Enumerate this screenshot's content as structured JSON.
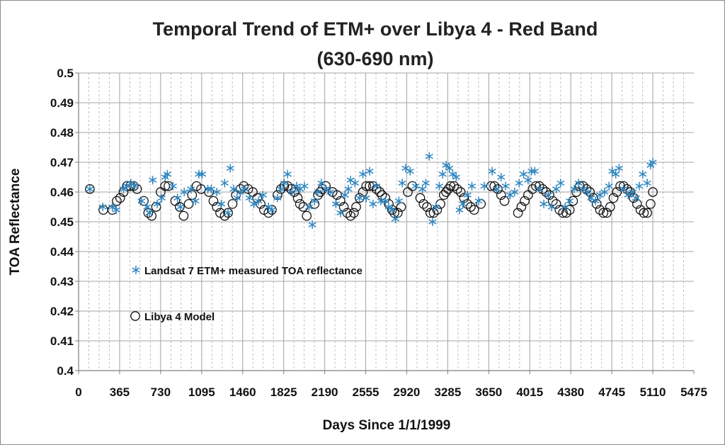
{
  "chart_data": {
    "type": "scatter",
    "title_line1": "Temporal Trend of ETM+ over Libya 4 - Red Band",
    "title_line2": "(630-690 nm)",
    "xlabel": "Days Since 1/1/1999",
    "ylabel": "TOA Reflectance",
    "xlim": [
      0,
      5475
    ],
    "ylim": [
      0.4,
      0.5
    ],
    "xticks": [
      0,
      365,
      730,
      1095,
      1460,
      1825,
      2190,
      2555,
      2920,
      3285,
      3650,
      4015,
      4380,
      4745,
      5110,
      5475
    ],
    "yticks": [
      0.4,
      0.41,
      0.42,
      0.43,
      0.44,
      0.45,
      0.46,
      0.47,
      0.48,
      0.49,
      0.5
    ],
    "ytick_labels": [
      "0.4",
      "0.41",
      "0.42",
      "0.43",
      "0.44",
      "0.45",
      "0.46",
      "0.47",
      "0.48",
      "0.49",
      "0.5"
    ],
    "grid": true,
    "legend_placement": "inside-left",
    "series": [
      {
        "name": "Landsat 7 ETM+ measured TOA reflectance",
        "marker": "asterisk",
        "color": "#2e86c1",
        "points": [
          [
            100,
            0.461
          ],
          [
            215,
            0.455
          ],
          [
            300,
            0.455
          ],
          [
            335,
            0.454
          ],
          [
            400,
            0.461
          ],
          [
            430,
            0.462
          ],
          [
            465,
            0.463
          ],
          [
            500,
            0.462
          ],
          [
            560,
            0.457
          ],
          [
            610,
            0.455
          ],
          [
            630,
            0.453
          ],
          [
            660,
            0.464
          ],
          [
            700,
            0.456
          ],
          [
            740,
            0.458
          ],
          [
            770,
            0.465
          ],
          [
            790,
            0.466
          ],
          [
            840,
            0.462
          ],
          [
            880,
            0.458
          ],
          [
            905,
            0.455
          ],
          [
            940,
            0.46
          ],
          [
            1000,
            0.461
          ],
          [
            1040,
            0.457
          ],
          [
            1070,
            0.466
          ],
          [
            1100,
            0.466
          ],
          [
            1150,
            0.461
          ],
          [
            1180,
            0.461
          ],
          [
            1230,
            0.46
          ],
          [
            1270,
            0.456
          ],
          [
            1300,
            0.463
          ],
          [
            1330,
            0.453
          ],
          [
            1350,
            0.468
          ],
          [
            1380,
            0.461
          ],
          [
            1410,
            0.458
          ],
          [
            1440,
            0.46
          ],
          [
            1480,
            0.461
          ],
          [
            1520,
            0.458
          ],
          [
            1560,
            0.456
          ],
          [
            1600,
            0.457
          ],
          [
            1640,
            0.459
          ],
          [
            1690,
            0.455
          ],
          [
            1720,
            0.454
          ],
          [
            1770,
            0.458
          ],
          [
            1800,
            0.461
          ],
          [
            1830,
            0.463
          ],
          [
            1860,
            0.466
          ],
          [
            1900,
            0.46
          ],
          [
            1940,
            0.462
          ],
          [
            1970,
            0.461
          ],
          [
            2010,
            0.462
          ],
          [
            2050,
            0.455
          ],
          [
            2080,
            0.449
          ],
          [
            2100,
            0.457
          ],
          [
            2130,
            0.46
          ],
          [
            2160,
            0.463
          ],
          [
            2200,
            0.461
          ],
          [
            2240,
            0.46
          ],
          [
            2290,
            0.456
          ],
          [
            2330,
            0.453
          ],
          [
            2370,
            0.459
          ],
          [
            2400,
            0.461
          ],
          [
            2420,
            0.464
          ],
          [
            2460,
            0.463
          ],
          [
            2500,
            0.458
          ],
          [
            2530,
            0.466
          ],
          [
            2560,
            0.458
          ],
          [
            2590,
            0.467
          ],
          [
            2620,
            0.456
          ],
          [
            2650,
            0.462
          ],
          [
            2690,
            0.457
          ],
          [
            2730,
            0.457
          ],
          [
            2760,
            0.455
          ],
          [
            2790,
            0.454
          ],
          [
            2820,
            0.451
          ],
          [
            2850,
            0.457
          ],
          [
            2880,
            0.463
          ],
          [
            2910,
            0.468
          ],
          [
            2950,
            0.467
          ],
          [
            3000,
            0.462
          ],
          [
            3060,
            0.461
          ],
          [
            3090,
            0.463
          ],
          [
            3120,
            0.472
          ],
          [
            3150,
            0.45
          ],
          [
            3180,
            0.455
          ],
          [
            3210,
            0.462
          ],
          [
            3240,
            0.466
          ],
          [
            3270,
            0.469
          ],
          [
            3300,
            0.468
          ],
          [
            3330,
            0.466
          ],
          [
            3360,
            0.465
          ],
          [
            3390,
            0.454
          ],
          [
            3420,
            0.456
          ],
          [
            3460,
            0.459
          ],
          [
            3500,
            0.462
          ],
          [
            3560,
            0.457
          ],
          [
            3610,
            0.462
          ],
          [
            3680,
            0.467
          ],
          [
            3720,
            0.461
          ],
          [
            3760,
            0.465
          ],
          [
            3800,
            0.462
          ],
          [
            3840,
            0.459
          ],
          [
            3880,
            0.46
          ],
          [
            3920,
            0.463
          ],
          [
            3960,
            0.466
          ],
          [
            4000,
            0.464
          ],
          [
            4030,
            0.467
          ],
          [
            4060,
            0.467
          ],
          [
            4100,
            0.461
          ],
          [
            4140,
            0.456
          ],
          [
            4180,
            0.459
          ],
          [
            4210,
            0.455
          ],
          [
            4250,
            0.461
          ],
          [
            4290,
            0.463
          ],
          [
            4330,
            0.455
          ],
          [
            4370,
            0.457
          ],
          [
            4410,
            0.461
          ],
          [
            4450,
            0.463
          ],
          [
            4490,
            0.461
          ],
          [
            4530,
            0.46
          ],
          [
            4560,
            0.458
          ],
          [
            4600,
            0.457
          ],
          [
            4640,
            0.459
          ],
          [
            4680,
            0.46
          ],
          [
            4720,
            0.462
          ],
          [
            4750,
            0.467
          ],
          [
            4780,
            0.466
          ],
          [
            4810,
            0.468
          ],
          [
            4850,
            0.461
          ],
          [
            4890,
            0.459
          ],
          [
            4930,
            0.46
          ],
          [
            4960,
            0.458
          ],
          [
            4990,
            0.462
          ],
          [
            5020,
            0.466
          ],
          [
            5060,
            0.463
          ],
          [
            5090,
            0.469
          ],
          [
            5110,
            0.47
          ]
        ]
      },
      {
        "name": "Libya 4 Model",
        "marker": "open-circle",
        "color": "#111111",
        "points": [
          [
            100,
            0.461
          ],
          [
            220,
            0.454
          ],
          [
            300,
            0.454
          ],
          [
            340,
            0.457
          ],
          [
            370,
            0.458
          ],
          [
            400,
            0.46
          ],
          [
            430,
            0.462
          ],
          [
            460,
            0.462
          ],
          [
            490,
            0.462
          ],
          [
            520,
            0.461
          ],
          [
            580,
            0.457
          ],
          [
            620,
            0.453
          ],
          [
            650,
            0.452
          ],
          [
            690,
            0.455
          ],
          [
            730,
            0.46
          ],
          [
            770,
            0.462
          ],
          [
            800,
            0.462
          ],
          [
            860,
            0.457
          ],
          [
            900,
            0.455
          ],
          [
            935,
            0.452
          ],
          [
            980,
            0.456
          ],
          [
            1010,
            0.459
          ],
          [
            1050,
            0.462
          ],
          [
            1090,
            0.461
          ],
          [
            1160,
            0.46
          ],
          [
            1200,
            0.457
          ],
          [
            1230,
            0.455
          ],
          [
            1260,
            0.453
          ],
          [
            1300,
            0.452
          ],
          [
            1330,
            0.453
          ],
          [
            1370,
            0.456
          ],
          [
            1400,
            0.459
          ],
          [
            1440,
            0.461
          ],
          [
            1470,
            0.462
          ],
          [
            1510,
            0.461
          ],
          [
            1550,
            0.46
          ],
          [
            1590,
            0.458
          ],
          [
            1620,
            0.456
          ],
          [
            1650,
            0.454
          ],
          [
            1690,
            0.453
          ],
          [
            1720,
            0.454
          ],
          [
            1770,
            0.459
          ],
          [
            1800,
            0.461
          ],
          [
            1830,
            0.462
          ],
          [
            1860,
            0.462
          ],
          [
            1890,
            0.461
          ],
          [
            1920,
            0.46
          ],
          [
            1950,
            0.458
          ],
          [
            1970,
            0.456
          ],
          [
            2000,
            0.455
          ],
          [
            2030,
            0.452
          ],
          [
            2100,
            0.456
          ],
          [
            2130,
            0.459
          ],
          [
            2150,
            0.46
          ],
          [
            2170,
            0.461
          ],
          [
            2200,
            0.462
          ],
          [
            2260,
            0.46
          ],
          [
            2300,
            0.459
          ],
          [
            2330,
            0.457
          ],
          [
            2360,
            0.455
          ],
          [
            2390,
            0.453
          ],
          [
            2420,
            0.452
          ],
          [
            2450,
            0.453
          ],
          [
            2470,
            0.455
          ],
          [
            2500,
            0.458
          ],
          [
            2530,
            0.46
          ],
          [
            2560,
            0.462
          ],
          [
            2590,
            0.462
          ],
          [
            2620,
            0.462
          ],
          [
            2650,
            0.461
          ],
          [
            2680,
            0.46
          ],
          [
            2700,
            0.459
          ],
          [
            2730,
            0.458
          ],
          [
            2760,
            0.456
          ],
          [
            2790,
            0.454
          ],
          [
            2810,
            0.453
          ],
          [
            2840,
            0.453
          ],
          [
            2870,
            0.455
          ],
          [
            2930,
            0.46
          ],
          [
            2970,
            0.462
          ],
          [
            3040,
            0.458
          ],
          [
            3070,
            0.456
          ],
          [
            3100,
            0.455
          ],
          [
            3130,
            0.453
          ],
          [
            3160,
            0.453
          ],
          [
            3190,
            0.454
          ],
          [
            3220,
            0.456
          ],
          [
            3250,
            0.459
          ],
          [
            3270,
            0.46
          ],
          [
            3290,
            0.461
          ],
          [
            3310,
            0.462
          ],
          [
            3340,
            0.462
          ],
          [
            3370,
            0.461
          ],
          [
            3400,
            0.46
          ],
          [
            3430,
            0.458
          ],
          [
            3460,
            0.456
          ],
          [
            3490,
            0.455
          ],
          [
            3520,
            0.454
          ],
          [
            3580,
            0.456
          ],
          [
            3670,
            0.462
          ],
          [
            3700,
            0.462
          ],
          [
            3730,
            0.461
          ],
          [
            3760,
            0.459
          ],
          [
            3790,
            0.457
          ],
          [
            3910,
            0.453
          ],
          [
            3940,
            0.455
          ],
          [
            3970,
            0.457
          ],
          [
            4000,
            0.459
          ],
          [
            4040,
            0.461
          ],
          [
            4070,
            0.462
          ],
          [
            4100,
            0.462
          ],
          [
            4130,
            0.461
          ],
          [
            4160,
            0.46
          ],
          [
            4190,
            0.459
          ],
          [
            4220,
            0.457
          ],
          [
            4250,
            0.456
          ],
          [
            4280,
            0.454
          ],
          [
            4310,
            0.453
          ],
          [
            4340,
            0.453
          ],
          [
            4370,
            0.454
          ],
          [
            4400,
            0.457
          ],
          [
            4430,
            0.46
          ],
          [
            4460,
            0.462
          ],
          [
            4490,
            0.462
          ],
          [
            4520,
            0.461
          ],
          [
            4550,
            0.46
          ],
          [
            4580,
            0.458
          ],
          [
            4610,
            0.456
          ],
          [
            4640,
            0.454
          ],
          [
            4670,
            0.453
          ],
          [
            4700,
            0.453
          ],
          [
            4730,
            0.455
          ],
          [
            4760,
            0.458
          ],
          [
            4790,
            0.46
          ],
          [
            4820,
            0.462
          ],
          [
            4850,
            0.462
          ],
          [
            4880,
            0.461
          ],
          [
            4910,
            0.46
          ],
          [
            4940,
            0.458
          ],
          [
            4970,
            0.456
          ],
          [
            5000,
            0.454
          ],
          [
            5030,
            0.453
          ],
          [
            5060,
            0.453
          ],
          [
            5090,
            0.456
          ],
          [
            5110,
            0.46
          ]
        ]
      }
    ]
  }
}
